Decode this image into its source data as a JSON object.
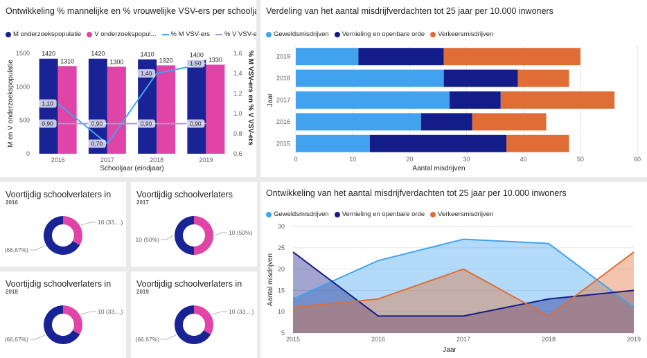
{
  "colors": {
    "navy": "#1a2396",
    "pink": "#e044a7",
    "lightblue": "#41a3f0",
    "darkblue": "#131d8a",
    "orange": "#e06d35",
    "lineblue": "#41a3f0",
    "linegray": "#a89bcc"
  },
  "combo": {
    "title": "Ontwikkeling % mannelijke en % vrouwelijke VSV-ers per schooljaar",
    "legend": [
      "M onderzoekspopulatie",
      "V onderzoekspopul...",
      "% M VSV-ers",
      "% V VSV-ers"
    ],
    "yleft_label": "M en V onderzoekspopulatie",
    "yright_label": "% M VSV-ers en % V VSV-ers",
    "xlabel": "Schooljaar (eindjaar)"
  },
  "stacked": {
    "title": "Verdeling van het aantal misdrijfverdachten tot 25 jaar per 10.000 inwoners",
    "legend": [
      "Geweldsmisdrijven",
      "Vernieling en openbare orde",
      "Verkeersmisdrijven"
    ],
    "ylabel": "Jaar",
    "xlabel": "Aantal misdrijven"
  },
  "donuts": [
    {
      "title": "Voortijdig schoolverlaters in",
      "year": "2016",
      "label_pink": "10 (33....)",
      "label_navy": "(66,67%)"
    },
    {
      "title": "Voortijdig schoolverlaters",
      "year": "2017",
      "label_pink": "10 (50%)",
      "label_navy": "10 (50%)"
    },
    {
      "title": "Voortijdig schoolverlaters in",
      "year": "2018",
      "label_pink": "10 (33....)",
      "label_navy": "(66,67%)"
    },
    {
      "title": "Voortijdig schoolverlaters in",
      "year": "2019",
      "label_pink": "10 (33....)",
      "label_navy": "(66.67%)"
    }
  ],
  "area": {
    "title": "Ontwikkeling van het aantal misdrijfverdachten tot 25 jaar per 10.000 inwoners",
    "legend": [
      "Geweldsmisdrijven",
      "Vernieling en openbare orde",
      "Verkeersmisdrijven"
    ],
    "ylabel": "Aantal misdrijven",
    "xlabel": "Jaar"
  },
  "chart_data": [
    {
      "type": "bar",
      "title": "Ontwikkeling % mannelijke en % vrouwelijke VSV-ers per schooljaar",
      "categories": [
        "2016",
        "2017",
        "2018",
        "2019"
      ],
      "series": [
        {
          "name": "M onderzoekspopulatie",
          "values": [
            1420,
            1420,
            1410,
            1400
          ],
          "labels": [
            "1420",
            "1420",
            "1410",
            "1400"
          ]
        },
        {
          "name": "V onderzoekspopulatie",
          "values": [
            1310,
            1300,
            1320,
            1330
          ],
          "labels": [
            "1310",
            "1300",
            "1320",
            "1330"
          ]
        }
      ],
      "line_series": [
        {
          "name": "% M VSV-ers",
          "values": [
            1.1,
            0.7,
            1.4,
            1.5
          ],
          "labels": [
            "1,10",
            "0,70",
            "1,40",
            "1,50"
          ]
        },
        {
          "name": "% V VSV-ers",
          "values": [
            0.9,
            0.9,
            0.9,
            0.9
          ],
          "labels": [
            "0,90",
            "0,90",
            "0,90",
            "0,90"
          ]
        }
      ],
      "ylim_left": [
        0,
        1500
      ],
      "yticks_left": [
        "0",
        "500",
        "1000",
        "1500"
      ],
      "ylim_right": [
        0.6,
        1.6
      ],
      "yticks_right": [
        "0,6",
        "0,8",
        "1,0",
        "1,2",
        "1,4",
        "1,6"
      ]
    },
    {
      "type": "bar",
      "orientation": "horizontal-stacked",
      "title": "Verdeling van het aantal misdrijfverdachten tot 25 jaar per 10.000 inwoners",
      "categories": [
        "2019",
        "2018",
        "2017",
        "2016",
        "2015"
      ],
      "series": [
        {
          "name": "Geweldsmisdrijven",
          "values": [
            11,
            26,
            27,
            22,
            13
          ]
        },
        {
          "name": "Vernieling en openbare orde",
          "values": [
            15,
            13,
            9,
            9,
            24
          ]
        },
        {
          "name": "Verkeersmisdrijven",
          "values": [
            24,
            9,
            20,
            13,
            11
          ]
        }
      ],
      "xlim": [
        0,
        60
      ],
      "xticks": [
        "0",
        "10",
        "20",
        "30",
        "40",
        "50",
        "60"
      ]
    },
    {
      "type": "pie",
      "title": "Voortijdig schoolverlaters in 2016",
      "slices": [
        {
          "name": "V",
          "value": 10
        },
        {
          "name": "M",
          "value": 20
        }
      ]
    },
    {
      "type": "pie",
      "title": "Voortijdig schoolverlaters 2017",
      "slices": [
        {
          "name": "V",
          "value": 10
        },
        {
          "name": "M",
          "value": 10
        }
      ]
    },
    {
      "type": "pie",
      "title": "Voortijdig schoolverlaters in 2018",
      "slices": [
        {
          "name": "V",
          "value": 10
        },
        {
          "name": "M",
          "value": 20
        }
      ]
    },
    {
      "type": "pie",
      "title": "Voortijdig schoolverlaters in 2019",
      "slices": [
        {
          "name": "V",
          "value": 10
        },
        {
          "name": "M",
          "value": 20
        }
      ]
    },
    {
      "type": "area",
      "title": "Ontwikkeling van het aantal misdrijfverdachten tot 25 jaar per 10.000 inwoners",
      "x": [
        "2015",
        "2016",
        "2017",
        "2018",
        "2019"
      ],
      "series": [
        {
          "name": "Geweldsmisdrijven",
          "values": [
            13,
            22,
            27,
            26,
            11
          ]
        },
        {
          "name": "Vernieling en openbare orde",
          "values": [
            24,
            9,
            9,
            13,
            15
          ]
        },
        {
          "name": "Verkeersmisdrijven",
          "values": [
            11,
            13,
            20,
            9,
            24
          ]
        }
      ],
      "ylim": [
        5,
        30
      ],
      "yticks": [
        "5",
        "10",
        "15",
        "20",
        "25",
        "30"
      ]
    }
  ]
}
